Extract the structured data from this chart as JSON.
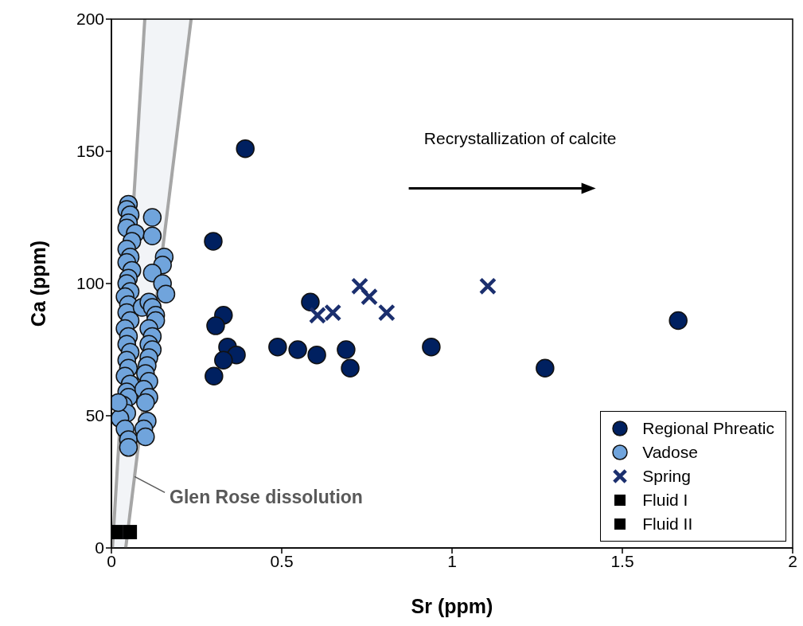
{
  "chart_data": {
    "type": "scatter",
    "xlabel": "Sr (ppm)",
    "ylabel": "Ca (ppm)",
    "xlim": [
      0,
      2
    ],
    "xticks": [
      0,
      0.5,
      1,
      1.5,
      2
    ],
    "ylim": [
      0,
      200
    ],
    "yticks": [
      0,
      50,
      100,
      150,
      200
    ],
    "legend": "bottom right",
    "annotations": [
      "Recrystallization of calcite",
      {
        "text": "Glen Rose dissolution",
        "x": 0.068,
        "y": 27
      }
    ],
    "series": [
      {
        "type": "line",
        "color": "#a6a6a6",
        "marker": "none",
        "x": [
          0.003,
          0.098
        ],
        "values": [
          0,
          200
        ]
      },
      {
        "type": "line",
        "color": "#a6a6a6",
        "marker": "none",
        "x": [
          0.042,
          0.234
        ],
        "values": [
          0,
          200
        ]
      },
      {
        "name": "Regional Phreatic",
        "color": "#002060",
        "marker": "circle",
        "x": [
          0.393,
          0.299,
          0.329,
          0.306,
          0.341,
          0.367,
          0.329,
          0.301,
          0.488,
          0.547,
          0.603,
          0.689,
          0.701,
          0.584,
          0.939,
          1.273,
          1.664
        ],
        "values": [
          151,
          116,
          88,
          84,
          76,
          73,
          71,
          65,
          76,
          75,
          73,
          75,
          68,
          93,
          76,
          68,
          86
        ]
      },
      {
        "name": "Vadose",
        "color": "#70a4dc",
        "marker": "circle",
        "x": [
          0.05,
          0.045,
          0.055,
          0.05,
          0.045,
          0.07,
          0.06,
          0.045,
          0.055,
          0.045,
          0.06,
          0.05,
          0.045,
          0.055,
          0.04,
          0.05,
          0.045,
          0.055,
          0.04,
          0.05,
          0.045,
          0.055,
          0.045,
          0.05,
          0.04,
          0.055,
          0.045,
          0.05,
          0.035,
          0.045,
          0.025,
          0.02,
          0.04,
          0.05,
          0.05,
          0.12,
          0.12,
          0.155,
          0.15,
          0.12,
          0.15,
          0.16,
          0.09,
          0.11,
          0.12,
          0.13,
          0.13,
          0.11,
          0.12,
          0.11,
          0.12,
          0.11,
          0.105,
          0.1,
          0.11,
          0.095,
          0.11,
          0.1,
          0.105,
          0.095,
          0.1
        ],
        "values": [
          130,
          128,
          126,
          123,
          121,
          119,
          116,
          113,
          110,
          108,
          105,
          102,
          100,
          97,
          95,
          92,
          89,
          86,
          83,
          80,
          77,
          74,
          71,
          68,
          65,
          62,
          59,
          57,
          54,
          51,
          49,
          55,
          45,
          41,
          38,
          125,
          118,
          110,
          107,
          104,
          100,
          96,
          91,
          93,
          91,
          88,
          86,
          83,
          80,
          77,
          75,
          72,
          69,
          66,
          63,
          60,
          57,
          55,
          48,
          45,
          42
        ]
      },
      {
        "name": "Spring",
        "color": "#1b2f6e",
        "marker": "cross",
        "x": [
          0.729,
          0.757,
          0.605,
          0.65,
          0.808,
          1.105
        ],
        "values": [
          99,
          95,
          88,
          89,
          89,
          99
        ]
      },
      {
        "name": "Fluid I",
        "color": "#000000",
        "marker": "square",
        "x": [
          0.012
        ],
        "values": [
          6
        ]
      },
      {
        "name": "Fluid II",
        "color": "#000000",
        "marker": "square",
        "x": [
          0.054
        ],
        "values": [
          6
        ]
      }
    ]
  }
}
